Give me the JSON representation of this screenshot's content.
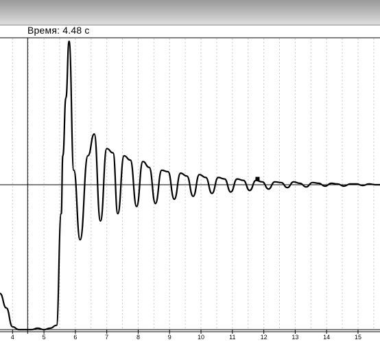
{
  "window": {
    "title": ""
  },
  "readout": {
    "time_text": "Время: 4.48 с"
  },
  "chart_data": {
    "type": "line",
    "title": "",
    "xlabel": "",
    "ylabel": "",
    "xlim": [
      3.6,
      15.7
    ],
    "ylim": [
      0,
      2.0
    ],
    "x_ticks": [
      4,
      5,
      6,
      7,
      8,
      9,
      10,
      11,
      12,
      13,
      14,
      15
    ],
    "grid": {
      "vertical_minor": true,
      "style": "dotted"
    },
    "reference_line_y": 1.0,
    "cursor_x": 4.48,
    "series": [
      {
        "color": "#000000",
        "x": [
          3.6,
          3.8,
          4.0,
          4.2,
          4.4,
          4.6,
          4.8,
          5.0,
          5.2,
          5.4,
          5.55,
          5.6,
          5.7,
          5.8,
          5.95,
          6.15,
          6.4,
          6.6,
          6.8,
          7.0,
          7.2,
          7.35,
          7.55,
          7.75,
          7.95,
          8.15,
          8.35,
          8.55,
          8.75,
          8.95,
          9.15,
          9.35,
          9.55,
          9.75,
          9.95,
          10.15,
          10.35,
          10.55,
          10.75,
          10.95,
          11.15,
          11.35,
          11.55,
          11.75,
          11.95,
          12.15,
          12.35,
          12.55,
          12.75,
          12.95,
          13.15,
          13.35,
          13.55,
          13.75,
          13.95,
          14.15,
          14.35,
          14.55,
          14.75,
          14.95,
          15.15,
          15.35,
          15.55,
          15.7
        ],
        "y": [
          0.25,
          0.15,
          0.02,
          0.0,
          0.0,
          0.0,
          0.01,
          0.0,
          0.01,
          0.03,
          0.8,
          1.2,
          1.6,
          1.99,
          1.1,
          0.62,
          1.2,
          1.35,
          0.75,
          1.25,
          1.22,
          0.8,
          1.2,
          1.17,
          0.85,
          1.16,
          1.12,
          0.87,
          1.1,
          1.09,
          0.9,
          1.08,
          1.06,
          0.92,
          1.07,
          1.05,
          0.94,
          1.05,
          1.04,
          0.95,
          1.04,
          1.03,
          0.96,
          1.03,
          1.02,
          0.97,
          1.02,
          1.015,
          0.98,
          1.02,
          1.01,
          0.985,
          1.015,
          1.01,
          0.99,
          1.01,
          1.005,
          0.99,
          1.005,
          1.005,
          0.995,
          1.005,
          1.0,
          1.0
        ]
      }
    ],
    "marker": {
      "x": 11.8,
      "y": 1.04,
      "shape": "square"
    }
  }
}
